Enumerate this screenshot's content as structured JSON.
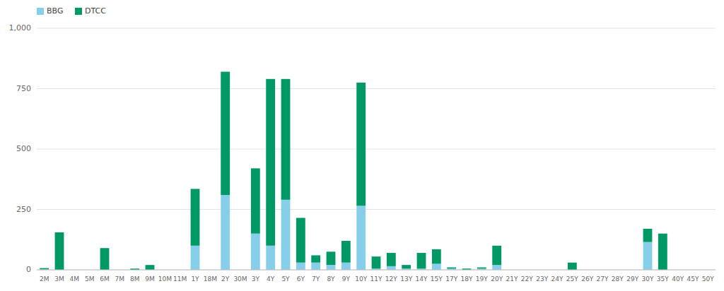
{
  "chart_data": {
    "type": "bar",
    "stacked": true,
    "categories": [
      "2M",
      "3M",
      "4M",
      "5M",
      "6M",
      "7M",
      "8M",
      "9M",
      "10M",
      "11M",
      "1Y",
      "18M",
      "2Y",
      "30M",
      "3Y",
      "4Y",
      "5Y",
      "6Y",
      "7Y",
      "8Y",
      "9Y",
      "10Y",
      "11Y",
      "12Y",
      "13Y",
      "14Y",
      "15Y",
      "17Y",
      "18Y",
      "19Y",
      "20Y",
      "21Y",
      "22Y",
      "23Y",
      "24Y",
      "25Y",
      "26Y",
      "27Y",
      "28Y",
      "29Y",
      "30Y",
      "35Y",
      "40Y",
      "45Y",
      "50Y"
    ],
    "series": [
      {
        "name": "BBG",
        "color": "#87CEEB",
        "values": [
          2,
          0,
          0,
          0,
          0,
          0,
          0,
          0,
          0,
          0,
          100,
          0,
          310,
          0,
          150,
          100,
          290,
          30,
          30,
          20,
          30,
          265,
          5,
          15,
          5,
          5,
          25,
          5,
          0,
          5,
          20,
          0,
          0,
          0,
          0,
          0,
          0,
          0,
          0,
          0,
          115,
          0,
          0,
          0,
          0
        ]
      },
      {
        "name": "DTCC",
        "color": "#009966",
        "values": [
          5,
          155,
          0,
          0,
          90,
          0,
          5,
          20,
          0,
          0,
          235,
          0,
          510,
          0,
          270,
          690,
          500,
          185,
          30,
          55,
          90,
          510,
          50,
          55,
          15,
          65,
          60,
          5,
          5,
          5,
          80,
          0,
          0,
          0,
          0,
          30,
          0,
          0,
          0,
          0,
          55,
          150,
          0,
          0,
          0
        ]
      }
    ],
    "ylim": [
      0,
      1000
    ],
    "yticks": [
      0,
      250,
      500,
      750,
      {
        "value": 1000,
        "label": "1,000"
      }
    ],
    "grid": true,
    "legend": "upper left"
  }
}
